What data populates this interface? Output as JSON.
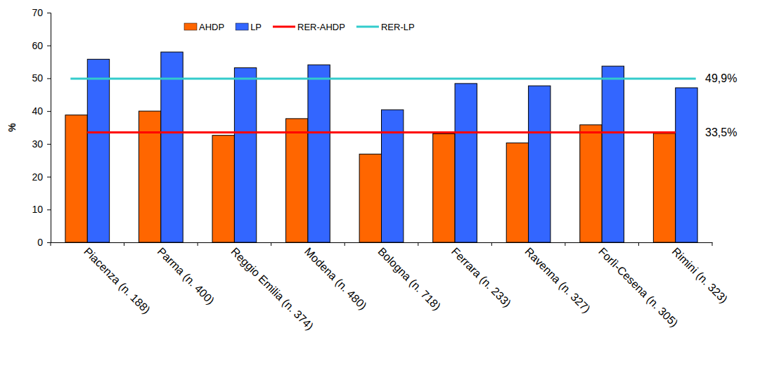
{
  "chart_data": {
    "type": "bar",
    "y_label": "%",
    "categories": [
      "Piacenza (n. 188)",
      "Parma (n. 400)",
      "Reggio Emilia (n. 374)",
      "Modena (n. 480)",
      "Bologna (n. 718)",
      "Ferrara (n. 233)",
      "Ravenna (n. 327)",
      "Forlì-Cesena (n. 305)",
      "Rimini (n. 323)"
    ],
    "series": [
      {
        "name": "AHDP",
        "color": "#ff6600",
        "values": [
          38.8,
          40.0,
          32.6,
          37.7,
          26.9,
          33.1,
          30.3,
          35.8,
          33.2
        ]
      },
      {
        "name": "LP",
        "color": "#3366ff",
        "values": [
          55.8,
          58.0,
          53.2,
          54.1,
          40.4,
          48.4,
          47.7,
          53.7,
          47.1
        ]
      },
      {
        "name": "RER-AHDP",
        "type": "hline",
        "color": "#ff0000",
        "value": 33.5,
        "value_label": "33,5%"
      },
      {
        "name": "RER-LP",
        "type": "hline",
        "color": "#33cccc",
        "value": 49.9,
        "value_label": "49,9%"
      }
    ],
    "ylim": [
      0,
      70
    ],
    "yticks": [
      0,
      10,
      20,
      30,
      40,
      50,
      60,
      70
    ],
    "legend": "top"
  }
}
